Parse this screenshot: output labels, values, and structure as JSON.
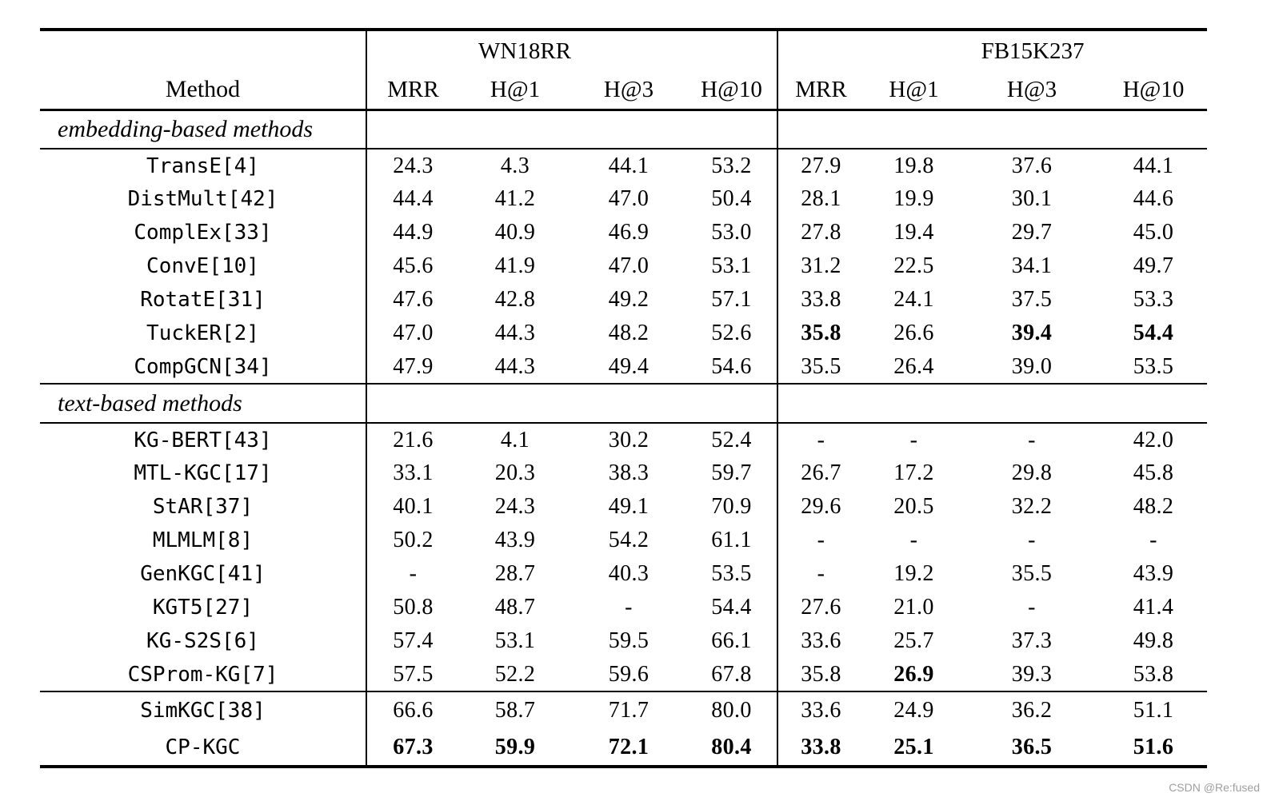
{
  "header": {
    "method_label": "Method",
    "groups": [
      {
        "label": "WN18RR",
        "metrics": [
          "MRR",
          "H@1",
          "H@3",
          "H@10"
        ]
      },
      {
        "label": "FB15K237",
        "metrics": [
          "MRR",
          "H@1",
          "H@3",
          "H@10"
        ]
      }
    ]
  },
  "sections": [
    {
      "label": "embedding-based methods",
      "rows": [
        {
          "method": "TransE[4]",
          "v": [
            "24.3",
            "4.3",
            "44.1",
            "53.2",
            "27.9",
            "19.8",
            "37.6",
            "44.1"
          ]
        },
        {
          "method": "DistMult[42]",
          "v": [
            "44.4",
            "41.2",
            "47.0",
            "50.4",
            "28.1",
            "19.9",
            "30.1",
            "44.6"
          ]
        },
        {
          "method": "ComplEx[33]",
          "v": [
            "44.9",
            "40.9",
            "46.9",
            "53.0",
            "27.8",
            "19.4",
            "29.7",
            "45.0"
          ]
        },
        {
          "method": "ConvE[10]",
          "v": [
            "45.6",
            "41.9",
            "47.0",
            "53.1",
            "31.2",
            "22.5",
            "34.1",
            "49.7"
          ]
        },
        {
          "method": "RotatE[31]",
          "v": [
            "47.6",
            "42.8",
            "49.2",
            "57.1",
            "33.8",
            "24.1",
            "37.5",
            "53.3"
          ]
        },
        {
          "method": "TuckER[2]",
          "v": [
            "47.0",
            "44.3",
            "48.2",
            "52.6",
            "35.8",
            "26.6",
            "39.4",
            "54.4"
          ],
          "b": [
            0,
            0,
            0,
            0,
            1,
            0,
            1,
            1
          ]
        },
        {
          "method": "CompGCN[34]",
          "v": [
            "47.9",
            "44.3",
            "49.4",
            "54.6",
            "35.5",
            "26.4",
            "39.0",
            "53.5"
          ]
        }
      ]
    },
    {
      "label": "text-based methods",
      "rows": [
        {
          "method": "KG-BERT[43]",
          "v": [
            "21.6",
            "4.1",
            "30.2",
            "52.4",
            "-",
            "-",
            "-",
            "42.0"
          ]
        },
        {
          "method": "MTL-KGC[17]",
          "v": [
            "33.1",
            "20.3",
            "38.3",
            "59.7",
            "26.7",
            "17.2",
            "29.8",
            "45.8"
          ]
        },
        {
          "method": "StAR[37]",
          "v": [
            "40.1",
            "24.3",
            "49.1",
            "70.9",
            "29.6",
            "20.5",
            "32.2",
            "48.2"
          ]
        },
        {
          "method": "MLMLM[8]",
          "v": [
            "50.2",
            "43.9",
            "54.2",
            "61.1",
            "-",
            "-",
            "-",
            "-"
          ]
        },
        {
          "method": "GenKGC[41]",
          "v": [
            "-",
            "28.7",
            "40.3",
            "53.5",
            "-",
            "19.2",
            "35.5",
            "43.9"
          ]
        },
        {
          "method": "KGT5[27]",
          "v": [
            "50.8",
            "48.7",
            "-",
            "54.4",
            "27.6",
            "21.0",
            "-",
            "41.4"
          ]
        },
        {
          "method": "KG-S2S[6]",
          "v": [
            "57.4",
            "53.1",
            "59.5",
            "66.1",
            "33.6",
            "25.7",
            "37.3",
            "49.8"
          ]
        },
        {
          "method": "CSProm-KG[7]",
          "v": [
            "57.5",
            "52.2",
            "59.6",
            "67.8",
            "35.8",
            "26.9",
            "39.3",
            "53.8"
          ],
          "b": [
            0,
            0,
            0,
            0,
            0,
            1,
            0,
            0
          ]
        }
      ]
    },
    {
      "label": null,
      "rows": [
        {
          "method": "SimKGC[38]",
          "v": [
            "66.6",
            "58.7",
            "71.7",
            "80.0",
            "33.6",
            "24.9",
            "36.2",
            "51.1"
          ]
        },
        {
          "method": "CP-KGC",
          "v": [
            "67.3",
            "59.9",
            "72.1",
            "80.4",
            "33.8",
            "25.1",
            "36.5",
            "51.6"
          ],
          "b": [
            1,
            1,
            1,
            1,
            1,
            1,
            1,
            1
          ]
        }
      ]
    }
  ],
  "watermark": "CSDN @Re:fused"
}
